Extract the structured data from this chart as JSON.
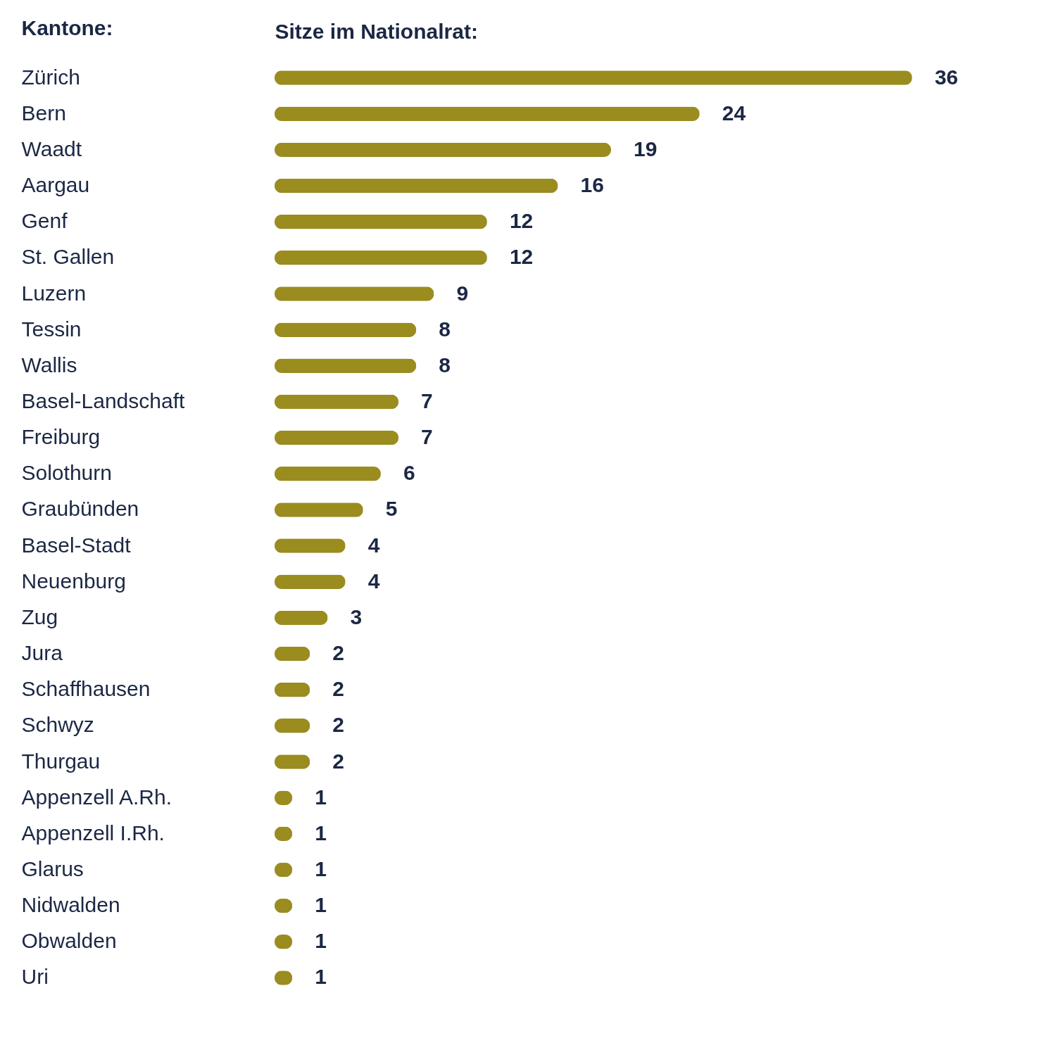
{
  "chart_data": {
    "type": "bar",
    "orientation": "horizontal",
    "ylabel": "Kantone:",
    "xlabel": "Sitze im Nationalrat:",
    "categories": [
      "Zürich",
      "Bern",
      "Waadt",
      "Aargau",
      "Genf",
      "St. Gallen",
      "Luzern",
      "Tessin",
      "Wallis",
      "Basel-Landschaft",
      "Freiburg",
      "Solothurn",
      "Graubünden",
      "Basel-Stadt",
      "Neuenburg",
      "Zug",
      "Jura",
      "Schaffhausen",
      "Schwyz",
      "Thurgau",
      "Appenzell A.Rh.",
      "Appenzell I.Rh.",
      "Glarus",
      "Nidwalden",
      "Obwalden",
      "Uri"
    ],
    "values": [
      36,
      24,
      19,
      16,
      12,
      12,
      9,
      8,
      8,
      7,
      7,
      6,
      5,
      4,
      4,
      3,
      2,
      2,
      2,
      2,
      1,
      1,
      1,
      1,
      1,
      1
    ],
    "color": "#9a8c1f",
    "data_labels": true
  }
}
